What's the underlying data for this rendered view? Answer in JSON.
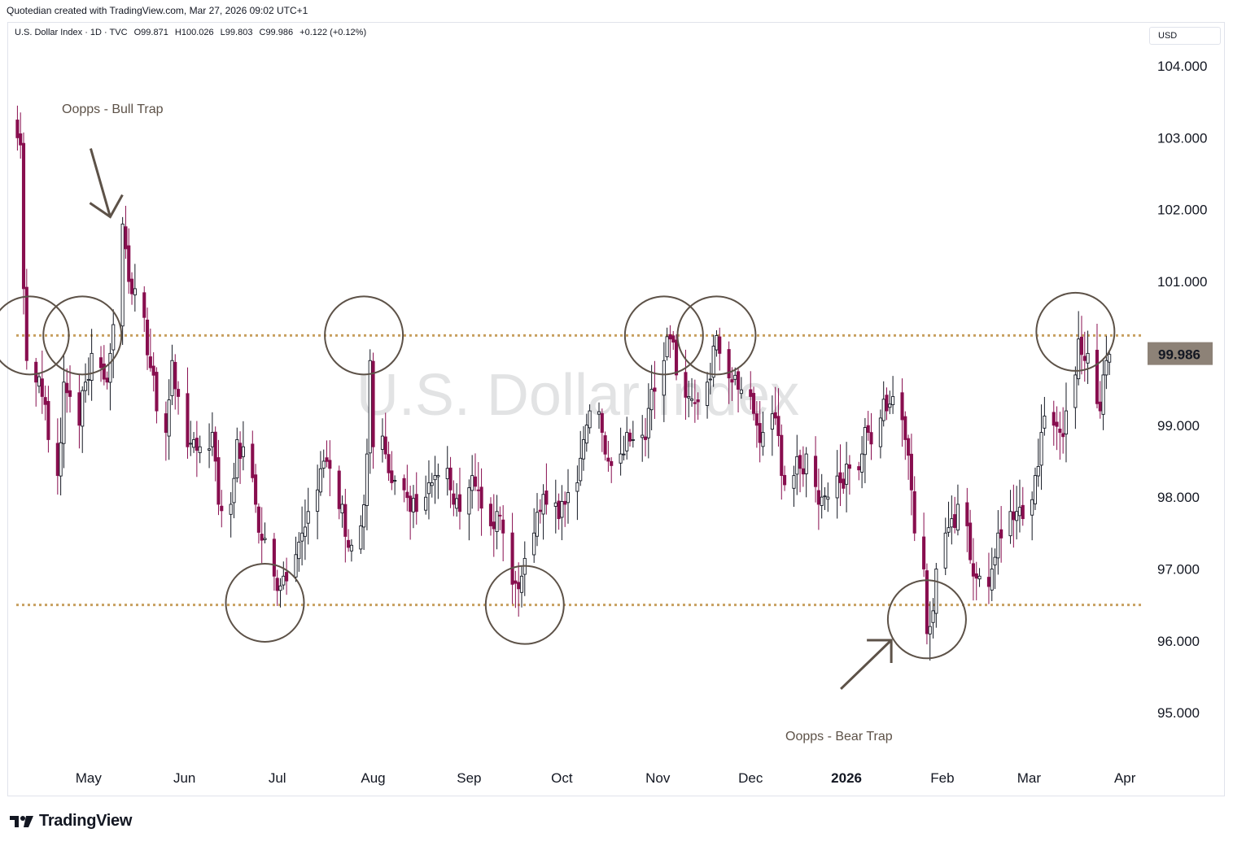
{
  "header": {
    "caption": "Quotedian created with TradingView.com, Mar 27, 2026 09:02 UTC+1"
  },
  "legend": {
    "symbol": "U.S. Dollar Index · 1D · TVC",
    "open": "O99.871",
    "high": "H100.026",
    "low": "L99.803",
    "close": "C99.986",
    "change": "+0.122 (+0.12%)"
  },
  "currency_selector": "USD",
  "watermark": "U.S. Dollar Index",
  "brand": {
    "name": "TradingView",
    "icon": "tradingview-logo-icon"
  },
  "colors": {
    "up": "#131722",
    "down": "#880e4f",
    "level": "#c8a060",
    "annotation": "#5d5248",
    "price_tag": "#8d8277"
  },
  "chart_data": {
    "type": "candlestick",
    "title": "U.S. Dollar Index",
    "symbol": "DXY",
    "interval": "1D",
    "ylim": [
      94.3,
      104.6
    ],
    "y_ticks": [
      "104.000",
      "103.000",
      "102.000",
      "101.000",
      "99.000",
      "98.000",
      "97.000",
      "96.000",
      "95.000"
    ],
    "x_ticks": [
      {
        "label": "May",
        "date": "2025-05-01"
      },
      {
        "label": "Jun",
        "date": "2025-06-01"
      },
      {
        "label": "Jul",
        "date": "2025-07-01"
      },
      {
        "label": "Aug",
        "date": "2025-08-01"
      },
      {
        "label": "Sep",
        "date": "2025-09-01"
      },
      {
        "label": "Oct",
        "date": "2025-10-01"
      },
      {
        "label": "Nov",
        "date": "2025-11-01"
      },
      {
        "label": "Dec",
        "date": "2025-12-01"
      },
      {
        "label": "2026",
        "date": "2026-01-01",
        "bold": true
      },
      {
        "label": "Feb",
        "date": "2026-02-01"
      },
      {
        "label": "Mar",
        "date": "2026-03-01"
      },
      {
        "label": "Apr",
        "date": "2026-04-01"
      }
    ],
    "last_price": "99.986",
    "last_close": 99.986,
    "horizontal_levels": [
      100.25,
      96.5
    ],
    "annotations": [
      {
        "text": "Oopps - Bull Trap",
        "date": "2025-05-08",
        "price": 101.9
      },
      {
        "text": "Oopps - Bear Trap",
        "date": "2026-01-26",
        "price": 96.1
      }
    ],
    "circles": [
      {
        "date": "2025-04-12",
        "price": 100.25
      },
      {
        "date": "2025-04-29",
        "price": 100.25
      },
      {
        "date": "2025-06-27",
        "price": 96.53
      },
      {
        "date": "2025-07-29",
        "price": 100.25
      },
      {
        "date": "2025-09-19",
        "price": 96.5
      },
      {
        "date": "2025-11-03",
        "price": 100.25
      },
      {
        "date": "2025-11-20",
        "price": 100.25
      },
      {
        "date": "2026-01-27",
        "price": 96.3
      },
      {
        "date": "2026-03-16",
        "price": 100.3
      }
    ],
    "path": [
      [
        "2025-04-08",
        103.0
      ],
      [
        "2025-04-09",
        102.9
      ],
      [
        "2025-04-10",
        100.9
      ],
      [
        "2025-04-11",
        99.9
      ],
      [
        "2025-04-14",
        99.6
      ],
      [
        "2025-04-16",
        99.4
      ],
      [
        "2025-04-18",
        98.8
      ],
      [
        "2025-04-21",
        98.3
      ],
      [
        "2025-04-23",
        99.6
      ],
      [
        "2025-04-25",
        99.4
      ],
      [
        "2025-04-28",
        99.0
      ],
      [
        "2025-04-30",
        99.6
      ],
      [
        "2025-05-02",
        100.0
      ],
      [
        "2025-05-05",
        99.8
      ],
      [
        "2025-05-07",
        99.6
      ],
      [
        "2025-05-09",
        100.4
      ],
      [
        "2025-05-12",
        101.8
      ],
      [
        "2025-05-14",
        101.0
      ],
      [
        "2025-05-16",
        100.9
      ],
      [
        "2025-05-19",
        100.5
      ],
      [
        "2025-05-21",
        99.8
      ],
      [
        "2025-05-23",
        99.2
      ],
      [
        "2025-05-26",
        98.9
      ],
      [
        "2025-05-28",
        99.9
      ],
      [
        "2025-05-30",
        99.4
      ],
      [
        "2025-06-02",
        98.7
      ],
      [
        "2025-06-04",
        98.8
      ],
      [
        "2025-06-06",
        98.7
      ],
      [
        "2025-06-10",
        98.9
      ],
      [
        "2025-06-12",
        97.9
      ],
      [
        "2025-06-16",
        97.9
      ],
      [
        "2025-06-18",
        98.8
      ],
      [
        "2025-06-20",
        98.7
      ],
      [
        "2025-06-24",
        97.9
      ],
      [
        "2025-06-26",
        97.4
      ],
      [
        "2025-06-30",
        96.9
      ],
      [
        "2025-07-01",
        96.7
      ],
      [
        "2025-07-03",
        96.9
      ],
      [
        "2025-07-07",
        97.2
      ],
      [
        "2025-07-09",
        97.5
      ],
      [
        "2025-07-11",
        97.8
      ],
      [
        "2025-07-14",
        98.1
      ],
      [
        "2025-07-16",
        98.5
      ],
      [
        "2025-07-18",
        98.4
      ],
      [
        "2025-07-22",
        97.9
      ],
      [
        "2025-07-24",
        97.3
      ],
      [
        "2025-07-28",
        97.6
      ],
      [
        "2025-07-30",
        98.6
      ],
      [
        "2025-07-31",
        99.9
      ],
      [
        "2025-08-01",
        98.7
      ],
      [
        "2025-08-05",
        98.6
      ],
      [
        "2025-08-07",
        98.2
      ],
      [
        "2025-08-11",
        98.1
      ],
      [
        "2025-08-13",
        97.8
      ],
      [
        "2025-08-15",
        97.8
      ],
      [
        "2025-08-19",
        98.2
      ],
      [
        "2025-08-21",
        98.3
      ],
      [
        "2025-08-25",
        98.4
      ],
      [
        "2025-08-27",
        97.9
      ],
      [
        "2025-08-29",
        97.8
      ],
      [
        "2025-09-02",
        98.3
      ],
      [
        "2025-09-04",
        98.1
      ],
      [
        "2025-09-08",
        97.6
      ],
      [
        "2025-09-10",
        97.8
      ],
      [
        "2025-09-12",
        97.5
      ],
      [
        "2025-09-16",
        96.8
      ],
      [
        "2025-09-18",
        96.9
      ],
      [
        "2025-09-22",
        97.5
      ],
      [
        "2025-09-24",
        97.8
      ],
      [
        "2025-09-26",
        97.9
      ],
      [
        "2025-09-30",
        97.7
      ],
      [
        "2025-10-02",
        97.9
      ],
      [
        "2025-10-06",
        98.2
      ],
      [
        "2025-10-08",
        98.8
      ],
      [
        "2025-10-10",
        99.2
      ],
      [
        "2025-10-14",
        98.9
      ],
      [
        "2025-10-16",
        98.5
      ],
      [
        "2025-10-20",
        98.6
      ],
      [
        "2025-10-22",
        98.9
      ],
      [
        "2025-10-24",
        98.8
      ],
      [
        "2025-10-28",
        98.8
      ],
      [
        "2025-10-30",
        99.5
      ],
      [
        "2025-11-03",
        99.9
      ],
      [
        "2025-11-05",
        100.2
      ],
      [
        "2025-11-07",
        99.7
      ],
      [
        "2025-11-11",
        99.4
      ],
      [
        "2025-11-13",
        99.3
      ],
      [
        "2025-11-17",
        99.6
      ],
      [
        "2025-11-19",
        100.1
      ],
      [
        "2025-11-21",
        100.0
      ],
      [
        "2025-11-25",
        99.6
      ],
      [
        "2025-11-27",
        99.5
      ],
      [
        "2025-12-01",
        99.4
      ],
      [
        "2025-12-03",
        99.0
      ],
      [
        "2025-12-05",
        98.9
      ],
      [
        "2025-12-09",
        99.1
      ],
      [
        "2025-12-11",
        98.3
      ],
      [
        "2025-12-15",
        98.3
      ],
      [
        "2025-12-17",
        98.4
      ],
      [
        "2025-12-19",
        98.6
      ],
      [
        "2025-12-23",
        97.9
      ],
      [
        "2025-12-26",
        98.0
      ],
      [
        "2025-12-30",
        98.2
      ],
      [
        "2026-01-02",
        98.4
      ],
      [
        "2026-01-06",
        98.6
      ],
      [
        "2026-01-08",
        98.9
      ],
      [
        "2026-01-12",
        99.1
      ],
      [
        "2026-01-14",
        99.2
      ],
      [
        "2026-01-16",
        99.4
      ],
      [
        "2026-01-20",
        98.8
      ],
      [
        "2026-01-22",
        98.1
      ],
      [
        "2026-01-23",
        97.5
      ],
      [
        "2026-01-26",
        97.0
      ],
      [
        "2026-01-27",
        96.1
      ],
      [
        "2026-01-28",
        96.2
      ],
      [
        "2026-01-30",
        97.0
      ],
      [
        "2026-02-02",
        97.5
      ],
      [
        "2026-02-04",
        97.7
      ],
      [
        "2026-02-06",
        97.9
      ],
      [
        "2026-02-09",
        97.6
      ],
      [
        "2026-02-11",
        96.9
      ],
      [
        "2026-02-13",
        96.9
      ],
      [
        "2026-02-17",
        97.0
      ],
      [
        "2026-02-19",
        97.5
      ],
      [
        "2026-02-23",
        97.8
      ],
      [
        "2026-02-25",
        97.8
      ],
      [
        "2026-02-27",
        97.7
      ],
      [
        "2026-03-03",
        98.3
      ],
      [
        "2026-03-05",
        98.9
      ],
      [
        "2026-03-09",
        99.0
      ],
      [
        "2026-03-11",
        98.9
      ],
      [
        "2026-03-13",
        99.2
      ],
      [
        "2026-03-16",
        99.7
      ],
      [
        "2026-03-17",
        100.2
      ],
      [
        "2026-03-19",
        99.9
      ],
      [
        "2026-03-20",
        100.0
      ],
      [
        "2026-03-23",
        99.3
      ],
      [
        "2026-03-24",
        99.2
      ],
      [
        "2026-03-25",
        99.7
      ],
      [
        "2026-03-26",
        99.9
      ],
      [
        "2026-03-27",
        99.986
      ]
    ]
  }
}
